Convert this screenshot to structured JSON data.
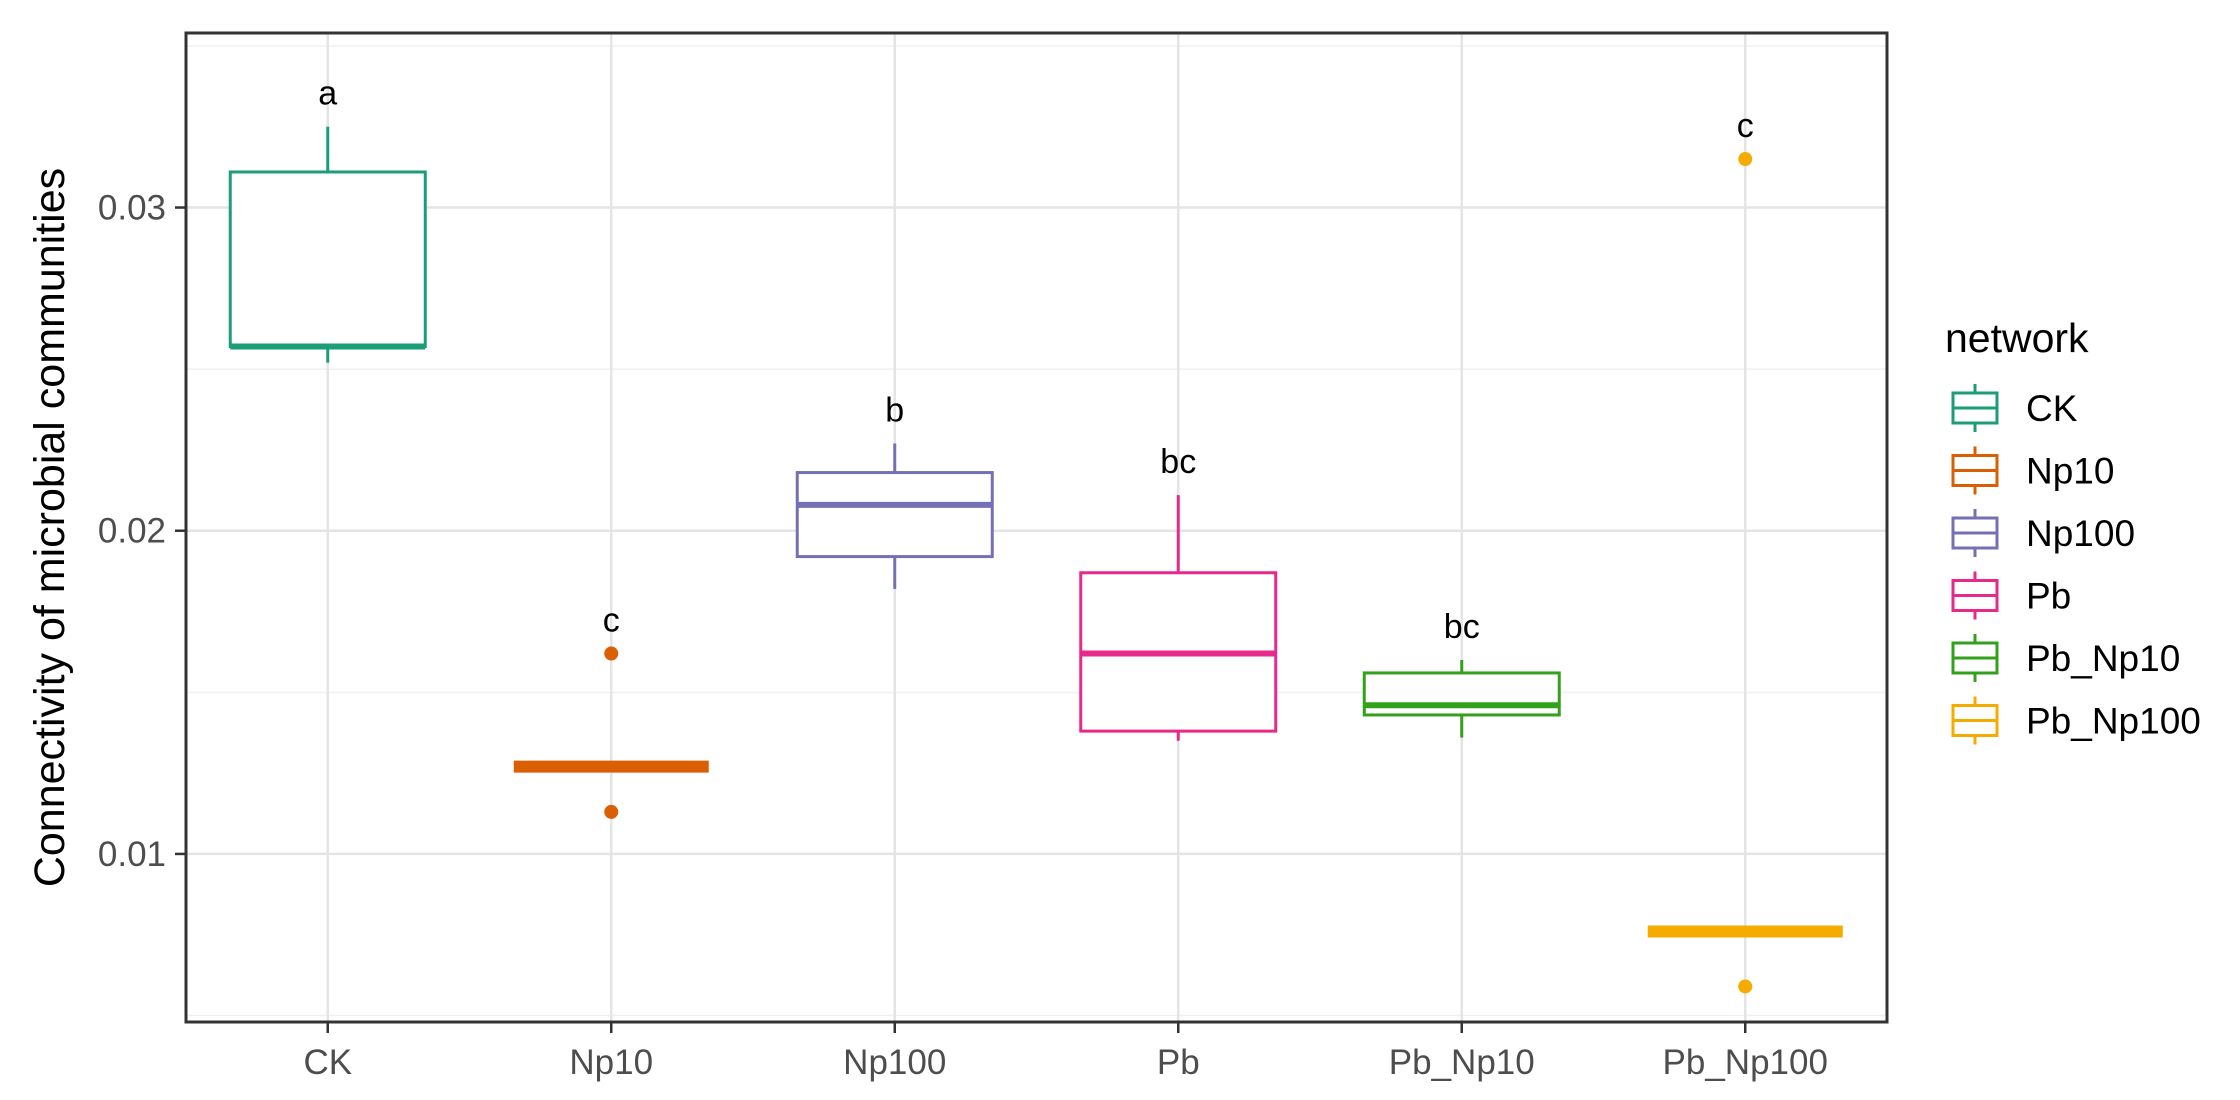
{
  "chart_data": {
    "type": "boxplot",
    "title": "",
    "xlabel": "",
    "ylabel": "Connectivity of microbial communities",
    "ylim": [
      0.0048,
      0.0354
    ],
    "yticks": [
      0.01,
      0.02,
      0.03
    ],
    "ytick_labels": [
      "0.01",
      "0.02",
      "0.03"
    ],
    "grid": true,
    "legend": {
      "title": "network",
      "placement": "right"
    },
    "categories": [
      "CK",
      "Np10",
      "Np100",
      "Pb",
      "Pb_Np10",
      "Pb_Np100"
    ],
    "series": [
      {
        "name": "CK",
        "color": "#1b9e77",
        "whisker_low": 0.0252,
        "q1": 0.0257,
        "median": 0.0257,
        "q3": 0.0311,
        "whisker_high": 0.0325,
        "outliers": [],
        "letter": "a"
      },
      {
        "name": "Np10",
        "color": "#d95f02",
        "whisker_low": 0.0127,
        "q1": 0.0127,
        "median": 0.0127,
        "q3": 0.0127,
        "whisker_high": 0.0127,
        "outliers": [
          0.0162,
          0.0113
        ],
        "letter": "c"
      },
      {
        "name": "Np100",
        "color": "#7570b3",
        "whisker_low": 0.0182,
        "q1": 0.0192,
        "median": 0.0208,
        "q3": 0.0218,
        "whisker_high": 0.0227,
        "outliers": [],
        "letter": "b"
      },
      {
        "name": "Pb",
        "color": "#e7298a",
        "whisker_low": 0.0135,
        "q1": 0.0138,
        "median": 0.0162,
        "q3": 0.0187,
        "whisker_high": 0.0211,
        "outliers": [],
        "letter": "bc"
      },
      {
        "name": "Pb_Np10",
        "color": "#34a11c",
        "whisker_low": 0.0136,
        "q1": 0.0143,
        "median": 0.0146,
        "q3": 0.0156,
        "whisker_high": 0.016,
        "outliers": [],
        "letter": "bc"
      },
      {
        "name": "Pb_Np100",
        "color": "#f6ab00",
        "whisker_low": 0.0076,
        "q1": 0.0076,
        "median": 0.0076,
        "q3": 0.0076,
        "whisker_high": 0.0076,
        "outliers": [
          0.0315,
          0.0059
        ],
        "letter": "c"
      }
    ]
  }
}
